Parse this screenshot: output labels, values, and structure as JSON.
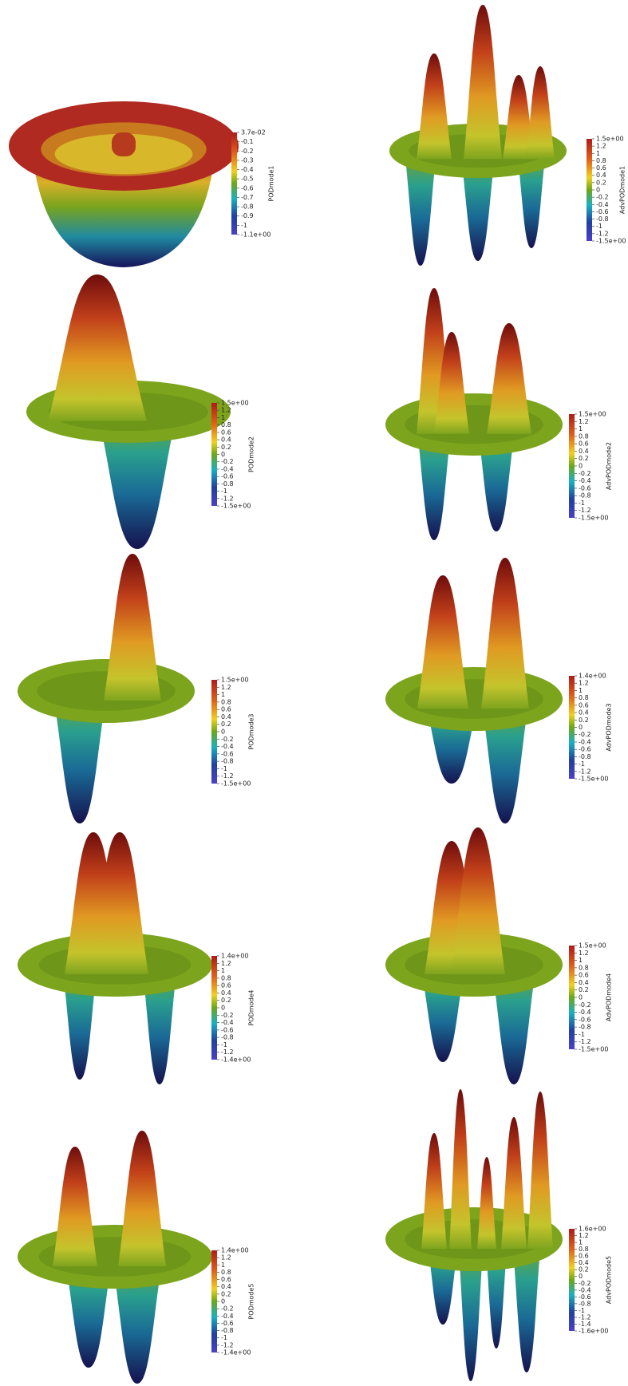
{
  "panels": [
    {
      "label": "PODmode1",
      "ticks": [
        "3.7e-02",
        "-0.1",
        "-0.2",
        "-0.3",
        "-0.4",
        "-0.5",
        "-0.6",
        "-0.7",
        "-0.8",
        "-0.9",
        "-1",
        "-1.1e+00"
      ]
    },
    {
      "label": "AdvPODmode1",
      "ticks": [
        "1.5e+00",
        "1.2",
        "1",
        "0.8",
        "0.6",
        "0.4",
        "0.2",
        "0",
        "-0.2",
        "-0.4",
        "-0.6",
        "-0.8",
        "-1",
        "-1.2",
        "-1.5e+00"
      ]
    },
    {
      "label": "PODmode2",
      "ticks": [
        "1.5e+00",
        "1.2",
        "1",
        "0.8",
        "0.6",
        "0.4",
        "0.2",
        "0",
        "-0.2",
        "-0.4",
        "-0.6",
        "-0.8",
        "-1",
        "-1.2",
        "-1.5e+00"
      ]
    },
    {
      "label": "AdvPODmode2",
      "ticks": [
        "1.5e+00",
        "1.2",
        "1",
        "0.8",
        "0.6",
        "0.4",
        "0.2",
        "0",
        "-0.2",
        "-0.4",
        "-0.6",
        "-0.8",
        "-1",
        "-1.2",
        "-1.5e+00"
      ]
    },
    {
      "label": "PODmode3",
      "ticks": [
        "1.5e+00",
        "1.2",
        "1",
        "0.8",
        "0.6",
        "0.4",
        "0.2",
        "0",
        "-0.2",
        "-0.4",
        "-0.6",
        "-0.8",
        "-1",
        "-1.2",
        "-1.5e+00"
      ]
    },
    {
      "label": "AdvPODmode3",
      "ticks": [
        "1.4e+00",
        "1.2",
        "1",
        "0.8",
        "0.6",
        "0.4",
        "0.2",
        "0",
        "-0.2",
        "-0.4",
        "-0.6",
        "-0.8",
        "-1",
        "-1.2",
        "-1.5e+00"
      ]
    },
    {
      "label": "PODmode4",
      "ticks": [
        "1.4e+00",
        "1.2",
        "1",
        "0.8",
        "0.6",
        "0.4",
        "0.2",
        "0",
        "-0.2",
        "-0.4",
        "-0.6",
        "-0.8",
        "-1",
        "-1.2",
        "-1.4e+00"
      ]
    },
    {
      "label": "AdvPODmode4",
      "ticks": [
        "1.5e+00",
        "1.2",
        "1",
        "0.8",
        "0.6",
        "0.4",
        "0.2",
        "0",
        "-0.2",
        "-0.4",
        "-0.6",
        "-0.8",
        "-1",
        "-1.2",
        "-1.5e+00"
      ]
    },
    {
      "label": "PODmode5",
      "ticks": [
        "1.4e+00",
        "1.2",
        "1",
        "0.8",
        "0.6",
        "0.4",
        "0.2",
        "0",
        "-0.2",
        "-0.4",
        "-0.6",
        "-0.8",
        "-1",
        "-1.2",
        "-1.4e+00"
      ]
    },
    {
      "label": "AdvPODmode5",
      "ticks": [
        "1.6e+00",
        "1.2",
        "1",
        "0.8",
        "0.6",
        "0.4",
        "0.2",
        "0",
        "-0.2",
        "-0.4",
        "-0.6",
        "-0.8",
        "-1",
        "-1.2",
        "-1.4",
        "-1.6e+00"
      ]
    }
  ]
}
